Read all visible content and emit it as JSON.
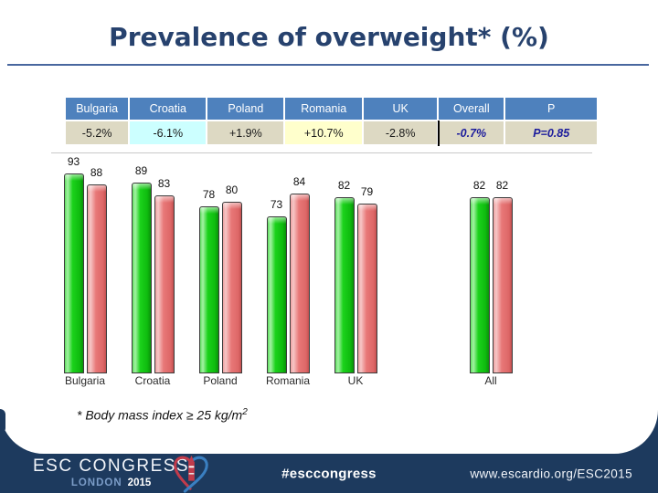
{
  "slide": {
    "title": "Prevalence of overweight* (%)"
  },
  "table": {
    "headers": [
      "Bulgaria",
      "Croatia",
      "Poland",
      "Romania",
      "UK",
      "Overall",
      "P"
    ],
    "values": [
      "-5.2%",
      "-6.1%",
      "+1.9%",
      "+10.7%",
      "-2.8%",
      "-0.7%",
      "P=0.85"
    ],
    "colors": {
      "header_bg": "#4e81bd",
      "header_text": "#ffffff",
      "value_bg_default": "#ddd9c3",
      "croatia_value_bg": "#ccffff",
      "romania_value_bg": "#ffffcc",
      "emphasis_text": "#1c1c9c",
      "uk_overall_divider": "#000000"
    }
  },
  "chart_data": {
    "type": "bar",
    "categories": [
      "Bulgaria",
      "Croatia",
      "Poland",
      "Romania",
      "UK",
      "All"
    ],
    "series": [
      {
        "name": "green",
        "color": "#1bd21b",
        "values": [
          93,
          89,
          78,
          73,
          82,
          82
        ]
      },
      {
        "name": "red",
        "color": "#e87878",
        "values": [
          88,
          83,
          80,
          84,
          79,
          82
        ]
      }
    ],
    "data_labels": true,
    "ylim": [
      0,
      100
    ],
    "grid": false,
    "legend": "none",
    "slot_map": [
      0,
      1,
      2,
      3,
      4,
      null,
      5,
      null
    ]
  },
  "footnote": {
    "text": "* Body mass index ≥ 25 kg/m",
    "sup": "2"
  },
  "footer": {
    "brand_line1": "ESC CONGRESS",
    "brand_city": "LONDON",
    "brand_year": "2015",
    "hashtag": "#esccongress",
    "url": "www.escardio.org/ESC2015",
    "bg_color": "#1d3a5e"
  }
}
